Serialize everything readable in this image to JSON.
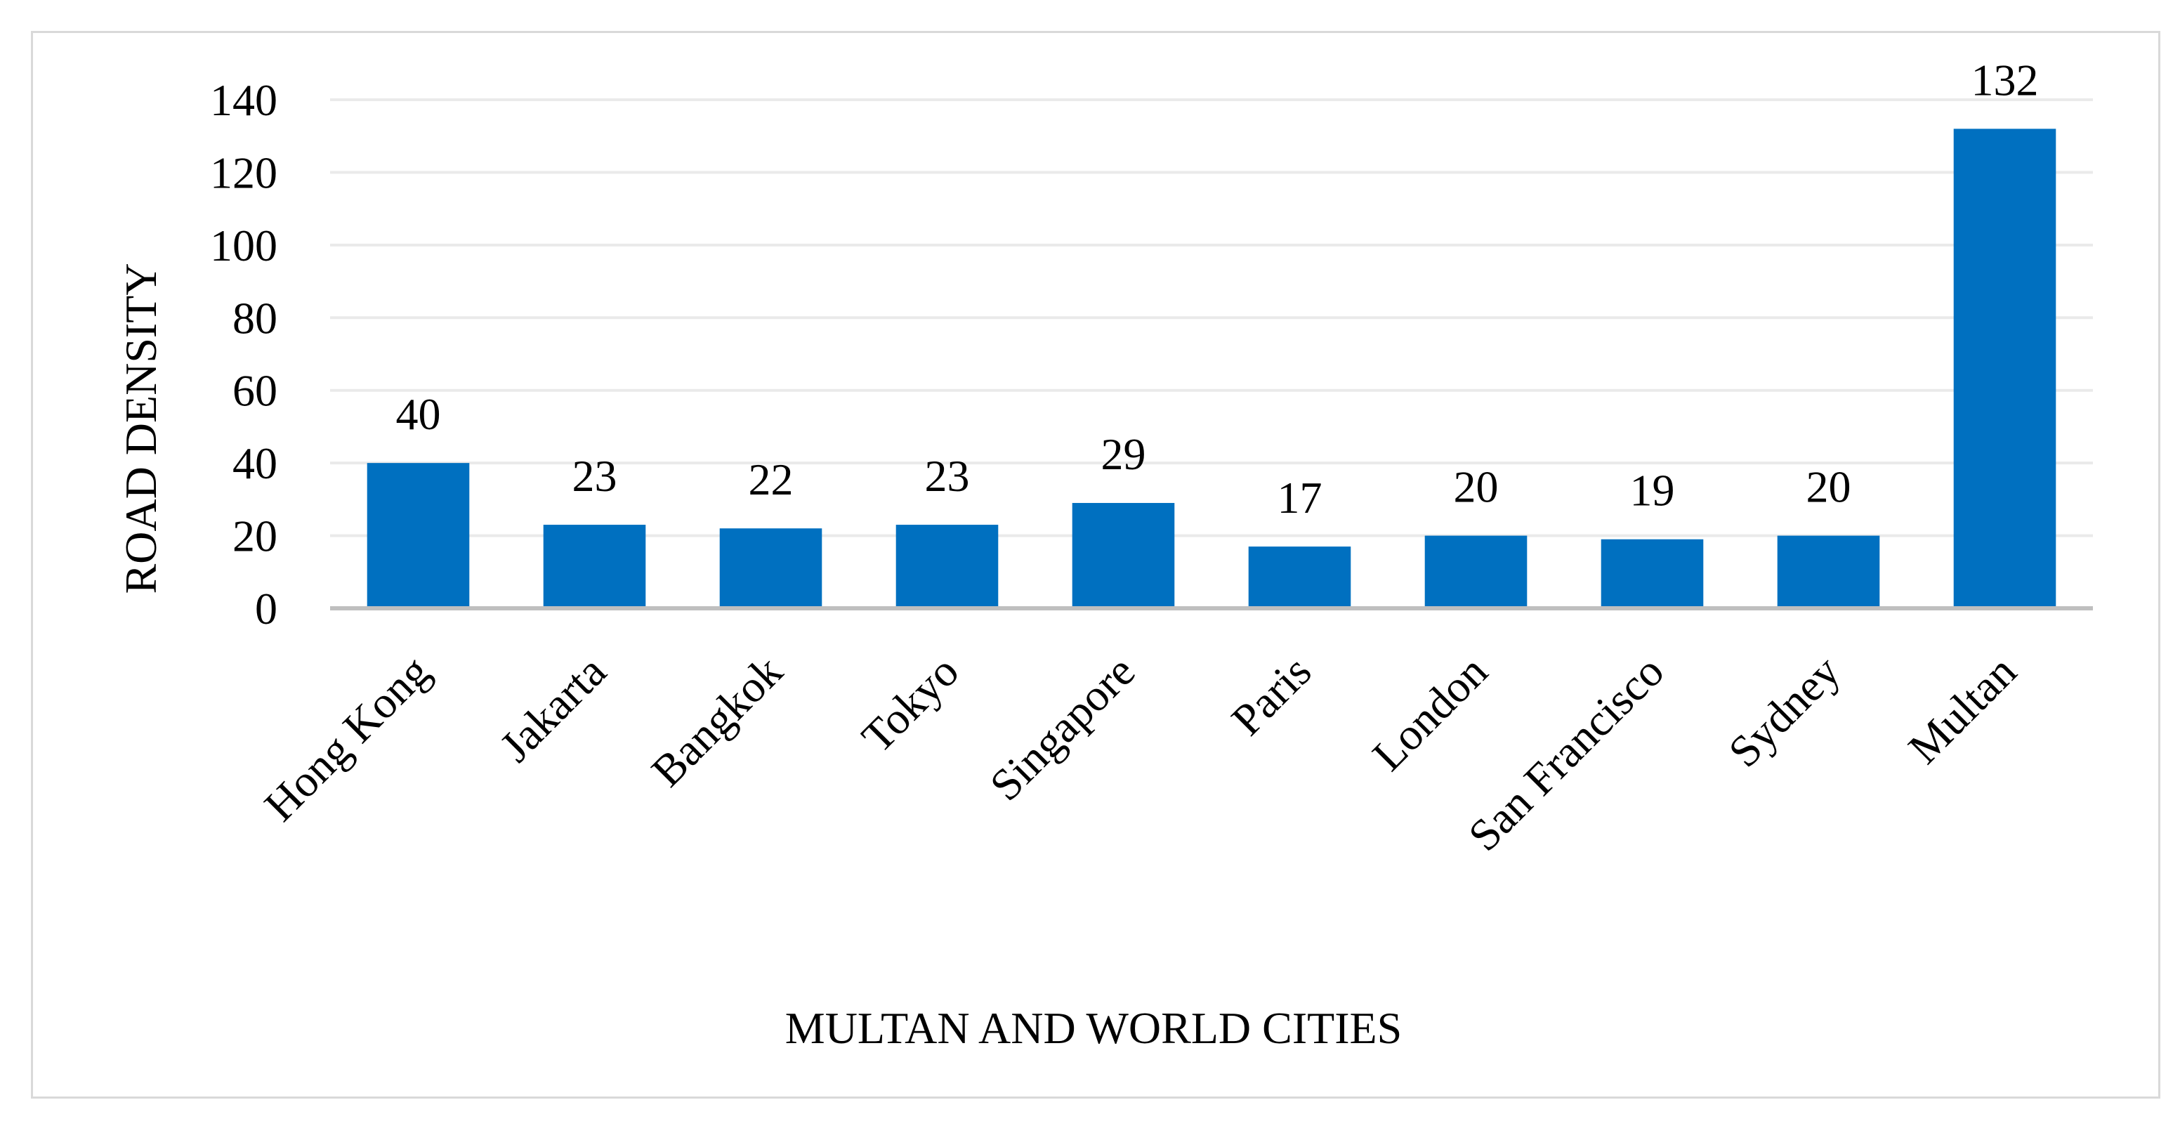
{
  "chart_data": {
    "type": "bar",
    "categories": [
      "Hong Kong",
      "Jakarta",
      "Bangkok",
      "Tokyo",
      "Singapore",
      "Paris",
      "London",
      "San Francisco",
      "Sydney",
      "Multan"
    ],
    "values": [
      40,
      23,
      22,
      23,
      29,
      17,
      20,
      19,
      20,
      132
    ],
    "xlabel": "MULTAN AND WORLD CITIES",
    "ylabel": "ROAD DENSITY",
    "ylim": [
      0,
      140
    ],
    "yticks": [
      0,
      20,
      40,
      60,
      80,
      100,
      120,
      140
    ],
    "grid": true,
    "bar_color": "#0070c0",
    "grid_color": "#eaeaea",
    "axis_color": "#bfbfbf"
  }
}
